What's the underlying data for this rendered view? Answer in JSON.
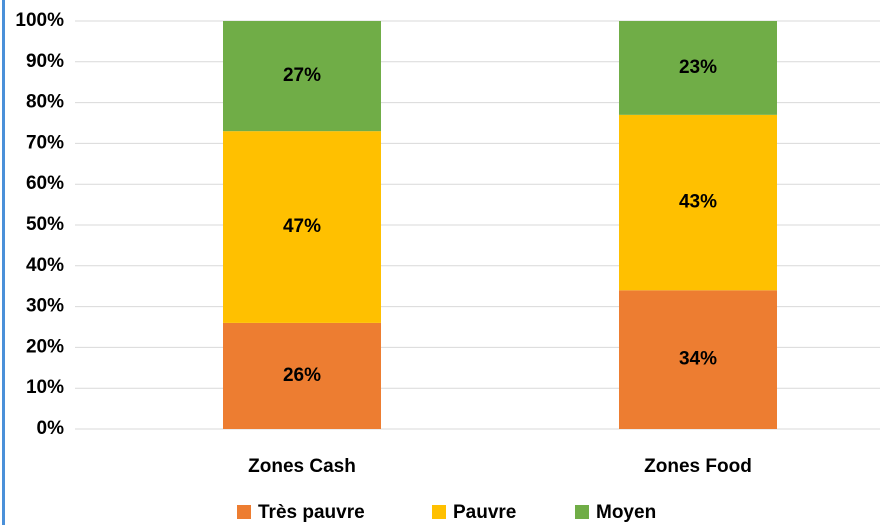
{
  "chart_data": {
    "type": "stacked_bar",
    "categories": [
      "Zones Cash",
      "Zones Food"
    ],
    "series": [
      {
        "name": "Très pauvre",
        "color": "#ED7D31",
        "values": [
          26,
          34
        ],
        "value_labels": [
          "26%",
          "34%"
        ]
      },
      {
        "name": "Pauvre",
        "color": "#FFC000",
        "values": [
          47,
          43
        ],
        "value_labels": [
          "47%",
          "43%"
        ]
      },
      {
        "name": "Moyen",
        "color": "#70AD47",
        "values": [
          27,
          23
        ],
        "value_labels": [
          "27%",
          "23%"
        ]
      }
    ],
    "ylim": [
      0,
      100
    ],
    "yticks": [
      {
        "value": 0,
        "label": "0%"
      },
      {
        "value": 10,
        "label": "10%"
      },
      {
        "value": 20,
        "label": "20%"
      },
      {
        "value": 30,
        "label": "30%"
      },
      {
        "value": 40,
        "label": "40%"
      },
      {
        "value": 50,
        "label": "50%"
      },
      {
        "value": 60,
        "label": "60%"
      },
      {
        "value": 70,
        "label": "70%"
      },
      {
        "value": 80,
        "label": "80%"
      },
      {
        "value": 90,
        "label": "90%"
      },
      {
        "value": 100,
        "label": "100%"
      }
    ],
    "grid": true,
    "legend": "bottom"
  }
}
